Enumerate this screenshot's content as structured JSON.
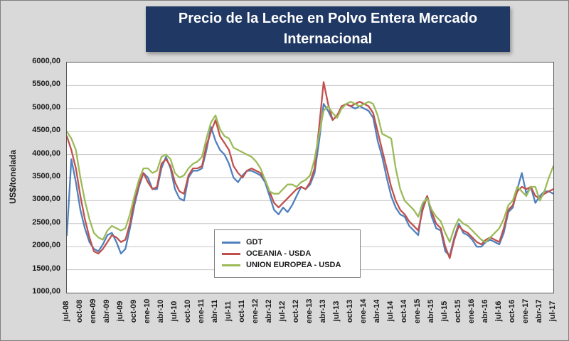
{
  "title": {
    "text": "Precio de la Leche en Polvo Entera Mercado Internacional"
  },
  "y_axis": {
    "title": "US$/tonelada",
    "tick_labels": [
      "6000,00",
      "5500,00",
      "5000,00",
      "4500,00",
      "4000,00",
      "3500,00",
      "3000,00",
      "2500,00",
      "2000,00",
      "1500,00",
      "1000,00"
    ],
    "min": 1000,
    "max": 6000,
    "step": 500
  },
  "x_axis": {
    "tick_labels": [
      "jul-08",
      "oct-08",
      "ene-09",
      "abr-09",
      "jul-09",
      "oct-09",
      "ene-10",
      "abr-10",
      "jul-10",
      "oct-10",
      "ene-11",
      "abr-11",
      "jul-11",
      "oct-11",
      "ene-12",
      "abr-12",
      "jul-12",
      "oct-12",
      "ene-13",
      "abr-13",
      "jul-13",
      "oct-13",
      "ene-14",
      "abr-14",
      "jul-14",
      "oct-14",
      "ene-15",
      "abr-15",
      "jul-15",
      "oct-15",
      "ene-16",
      "abr-16",
      "jul-16",
      "oct-16",
      "ene-17",
      "abr-17",
      "jul-17"
    ],
    "tick_every": 3
  },
  "colors": {
    "grid": "#c6c6c6",
    "title_bg": "#1f3864",
    "page_bg": "#d9d9d9"
  },
  "chart_data": {
    "type": "line",
    "title": "Precio de la Leche en Polvo Entera Mercado Internacional",
    "xlabel": "",
    "ylabel": "US$/tonelada",
    "ylim": [
      1000,
      6000
    ],
    "grid": "horizontal",
    "legend_position": "center-bottom-inside",
    "x_tick_labels": [
      "jul-08",
      "oct-08",
      "ene-09",
      "abr-09",
      "jul-09",
      "oct-09",
      "ene-10",
      "abr-10",
      "jul-10",
      "oct-10",
      "ene-11",
      "abr-11",
      "jul-11",
      "oct-11",
      "ene-12",
      "abr-12",
      "jul-12",
      "oct-12",
      "ene-13",
      "abr-13",
      "jul-13",
      "oct-13",
      "ene-14",
      "abr-14",
      "jul-14",
      "oct-14",
      "ene-15",
      "abr-15",
      "jul-15",
      "oct-15",
      "ene-16",
      "abr-16",
      "jul-16",
      "oct-16",
      "ene-17",
      "abr-17",
      "jul-17"
    ],
    "x_note": "monthly points jul-08 through jul-17, axis labeled every 3rd month",
    "series": [
      {
        "name": "GDT",
        "color": "#4F81BD",
        "values": [
          2250,
          3900,
          3400,
          2800,
          2400,
          2100,
          1950,
          1900,
          2050,
          2250,
          2300,
          2100,
          1850,
          1950,
          2400,
          2900,
          3300,
          3600,
          3500,
          3250,
          3250,
          3700,
          3950,
          3700,
          3250,
          3050,
          3000,
          3500,
          3650,
          3650,
          3700,
          4100,
          4600,
          4300,
          4100,
          4000,
          3800,
          3500,
          3400,
          3550,
          3650,
          3650,
          3600,
          3550,
          3400,
          3100,
          2800,
          2700,
          2850,
          2750,
          2900,
          3100,
          3300,
          3250,
          3350,
          3600,
          4300,
          5100,
          4950,
          4750,
          4850,
          5000,
          5100,
          5050,
          5000,
          5050,
          5000,
          4950,
          4800,
          4300,
          3950,
          3500,
          3100,
          2850,
          2700,
          2650,
          2450,
          2350,
          2250,
          2900,
          3100,
          2650,
          2400,
          2350,
          1900,
          1800,
          2200,
          2500,
          2300,
          2250,
          2150,
          2000,
          2000,
          2100,
          2150,
          2100,
          2050,
          2300,
          2750,
          2850,
          3250,
          3600,
          3150,
          3300,
          2950,
          3100,
          3200,
          3200,
          3150
        ]
      },
      {
        "name": "OCEANIA - USDA",
        "color": "#C0504D",
        "values": [
          4400,
          4100,
          3700,
          3100,
          2600,
          2200,
          1900,
          1850,
          1950,
          2100,
          2250,
          2200,
          2100,
          2150,
          2500,
          3000,
          3350,
          3600,
          3400,
          3250,
          3300,
          3800,
          3900,
          3750,
          3400,
          3200,
          3150,
          3550,
          3700,
          3700,
          3750,
          4200,
          4500,
          4750,
          4400,
          4250,
          4100,
          3750,
          3600,
          3500,
          3650,
          3700,
          3650,
          3600,
          3450,
          3200,
          2950,
          2850,
          2950,
          3050,
          3150,
          3250,
          3300,
          3250,
          3400,
          3700,
          4600,
          5575,
          5100,
          4750,
          4850,
          5050,
          5100,
          5050,
          5100,
          5150,
          5100,
          5050,
          4900,
          4500,
          4100,
          3700,
          3300,
          3000,
          2800,
          2700,
          2550,
          2450,
          2350,
          2800,
          3100,
          2750,
          2500,
          2400,
          2000,
          1750,
          2150,
          2450,
          2350,
          2300,
          2200,
          2100,
          2050,
          2150,
          2200,
          2150,
          2100,
          2400,
          2800,
          2900,
          3200,
          3300,
          3250,
          3300,
          3100,
          3050,
          3150,
          3200,
          3250
        ]
      },
      {
        "name": "UNION EUROPEA - USDA",
        "color": "#9BBB59",
        "values": [
          4500,
          4350,
          4100,
          3500,
          3000,
          2600,
          2300,
          2200,
          2150,
          2350,
          2450,
          2400,
          2350,
          2400,
          2700,
          3100,
          3450,
          3700,
          3700,
          3600,
          3650,
          3950,
          4000,
          3900,
          3600,
          3500,
          3550,
          3700,
          3800,
          3850,
          3950,
          4350,
          4700,
          4850,
          4550,
          4400,
          4350,
          4150,
          4100,
          4050,
          4000,
          3950,
          3850,
          3700,
          3450,
          3200,
          3150,
          3150,
          3250,
          3350,
          3350,
          3300,
          3400,
          3450,
          3550,
          3900,
          4450,
          4950,
          5050,
          4900,
          4800,
          5000,
          5100,
          5150,
          5100,
          5050,
          5100,
          5150,
          5100,
          4850,
          4450,
          4400,
          4350,
          3700,
          3250,
          3000,
          2900,
          2800,
          2650,
          2950,
          3050,
          2800,
          2650,
          2550,
          2300,
          2100,
          2400,
          2600,
          2500,
          2450,
          2350,
          2250,
          2150,
          2100,
          2200,
          2300,
          2400,
          2600,
          2900,
          3000,
          3300,
          3200,
          3100,
          3300,
          3300,
          3000,
          3200,
          3500,
          3750
        ]
      }
    ]
  }
}
